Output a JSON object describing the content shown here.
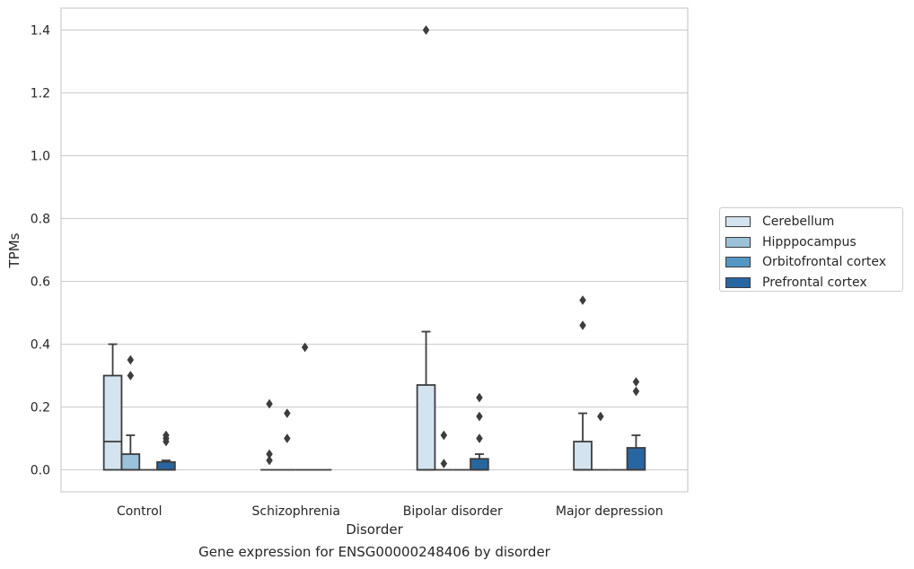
{
  "chart_data": {
    "type": "box",
    "title": "",
    "xlabel": "Disorder",
    "ylabel": "TPMs",
    "caption": "Gene expression for ENSG00000248406 by disorder",
    "ylim": [
      -0.07,
      1.47
    ],
    "yticks": [
      "0.0",
      "0.2",
      "0.4",
      "0.6",
      "0.8",
      "1.0",
      "1.2",
      "1.4"
    ],
    "ytick_values": [
      0.0,
      0.2,
      0.4,
      0.6,
      0.8,
      1.0,
      1.2,
      1.4
    ],
    "grid": true,
    "legend_position": "right",
    "categories": [
      "Control",
      "Schizophrenia",
      "Bipolar disorder",
      "Major depression"
    ],
    "series": [
      {
        "name": "Cerebellum",
        "color": "#d3e3f0",
        "boxes": [
          {
            "q1": 0.0,
            "median": 0.09,
            "q3": 0.3,
            "whisker_low": 0.0,
            "whisker_high": 0.4,
            "outliers": []
          },
          {
            "q1": 0.0,
            "median": 0.0,
            "q3": 0.0,
            "whisker_low": 0.0,
            "whisker_high": 0.0,
            "outliers": [
              0.21,
              0.05,
              0.03
            ]
          },
          {
            "q1": 0.0,
            "median": 0.0,
            "q3": 0.27,
            "whisker_low": 0.0,
            "whisker_high": 0.44,
            "outliers": [
              1.4
            ]
          },
          {
            "q1": 0.0,
            "median": 0.0,
            "q3": 0.09,
            "whisker_low": 0.0,
            "whisker_high": 0.18,
            "outliers": [
              0.54,
              0.46
            ]
          }
        ]
      },
      {
        "name": "Hipppocampus",
        "color": "#9ac2d9",
        "boxes": [
          {
            "q1": 0.0,
            "median": 0.0,
            "q3": 0.05,
            "whisker_low": 0.0,
            "whisker_high": 0.11,
            "outliers": [
              0.35,
              0.3
            ]
          },
          {
            "q1": 0.0,
            "median": 0.0,
            "q3": 0.0,
            "whisker_low": 0.0,
            "whisker_high": 0.0,
            "outliers": [
              0.18,
              0.1
            ]
          },
          {
            "q1": 0.0,
            "median": 0.0,
            "q3": 0.0,
            "whisker_low": 0.0,
            "whisker_high": 0.0,
            "outliers": [
              0.11,
              0.02
            ]
          },
          {
            "q1": 0.0,
            "median": 0.0,
            "q3": 0.0,
            "whisker_low": 0.0,
            "whisker_high": 0.0,
            "outliers": [
              0.17
            ]
          }
        ]
      },
      {
        "name": "Orbitofrontal cortex",
        "color": "#5597c4",
        "boxes": [
          {
            "q1": 0.0,
            "median": 0.0,
            "q3": 0.0,
            "whisker_low": 0.0,
            "whisker_high": 0.0,
            "outliers": []
          },
          {
            "q1": 0.0,
            "median": 0.0,
            "q3": 0.0,
            "whisker_low": 0.0,
            "whisker_high": 0.0,
            "outliers": [
              0.39
            ]
          },
          {
            "q1": 0.0,
            "median": 0.0,
            "q3": 0.0,
            "whisker_low": 0.0,
            "whisker_high": 0.0,
            "outliers": []
          },
          {
            "q1": 0.0,
            "median": 0.0,
            "q3": 0.0,
            "whisker_low": 0.0,
            "whisker_high": 0.0,
            "outliers": []
          }
        ]
      },
      {
        "name": "Prefrontal cortex",
        "color": "#2866a1",
        "boxes": [
          {
            "q1": 0.0,
            "median": 0.0,
            "q3": 0.025,
            "whisker_low": 0.0,
            "whisker_high": 0.03,
            "outliers": [
              0.11,
              0.1,
              0.09
            ]
          },
          {
            "q1": 0.0,
            "median": 0.0,
            "q3": 0.0,
            "whisker_low": 0.0,
            "whisker_high": 0.0,
            "outliers": []
          },
          {
            "q1": 0.0,
            "median": 0.0,
            "q3": 0.035,
            "whisker_low": 0.0,
            "whisker_high": 0.05,
            "outliers": [
              0.23,
              0.17,
              0.1
            ]
          },
          {
            "q1": 0.0,
            "median": 0.0,
            "q3": 0.07,
            "whisker_low": 0.0,
            "whisker_high": 0.11,
            "outliers": [
              0.28,
              0.25
            ]
          }
        ]
      }
    ]
  }
}
